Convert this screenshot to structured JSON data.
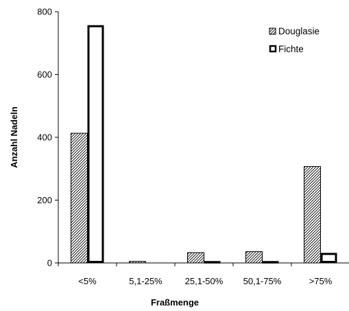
{
  "chart_data": {
    "type": "bar",
    "title": "",
    "xlabel": "Fraßmenge",
    "ylabel": "Anzahl Nadeln",
    "ylim": [
      0,
      800
    ],
    "yticks": [
      "0",
      "200",
      "400",
      "600",
      "800"
    ],
    "categories": [
      "<5%",
      "5,1-25%",
      "25,1-50%",
      "50,1-75%",
      ">75%"
    ],
    "series": [
      {
        "name": "Douglasie",
        "values": [
          413,
          5,
          33,
          36,
          307
        ],
        "pattern": "diagonal-hatch",
        "color": "#000000"
      },
      {
        "name": "Fichte",
        "values": [
          757,
          0,
          6,
          6,
          32
        ],
        "pattern": "white-fill-thick-outline",
        "color": "#000000"
      }
    ],
    "legend_position": "top-right",
    "grid": false
  }
}
